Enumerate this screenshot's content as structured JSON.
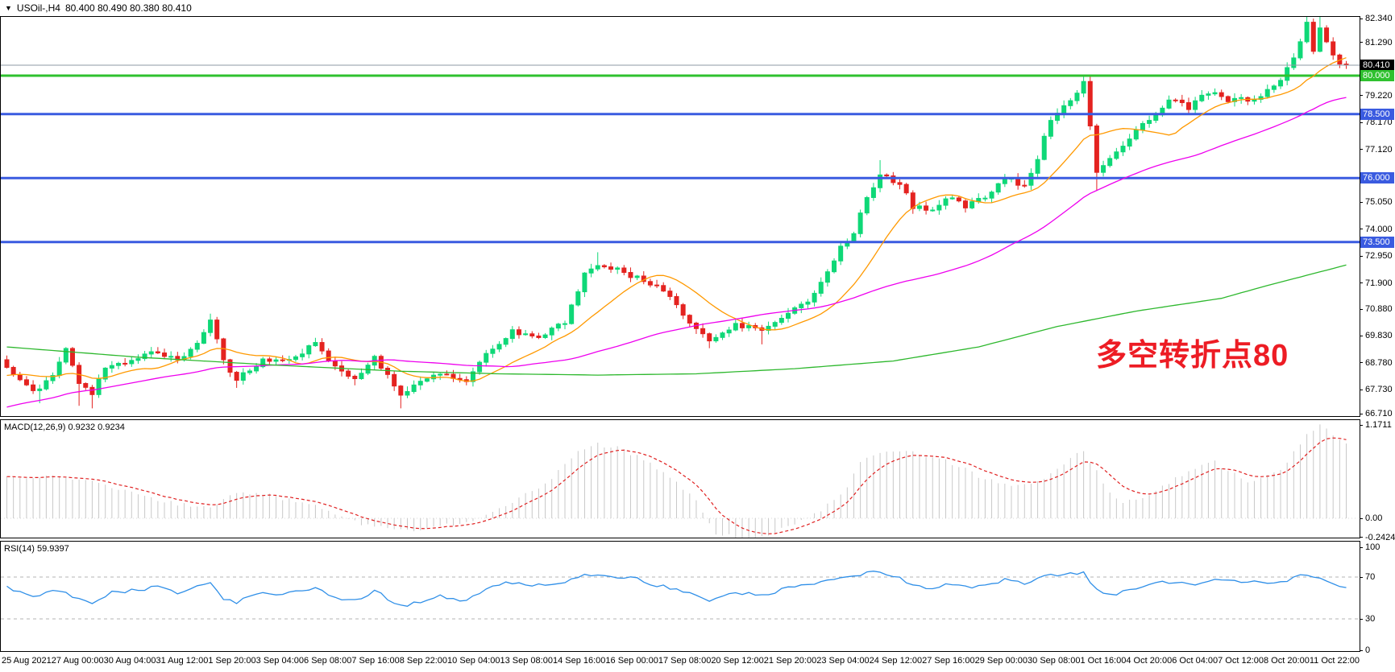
{
  "title": {
    "symbol_period": "USOil-,H4",
    "ohlc_text": "80.400 80.490 80.380 80.410",
    "dropdown_glyph": "▼"
  },
  "colors": {
    "bull": "#0fd877",
    "bear": "#e42320",
    "ma_fast": "#ff9900",
    "ma_mid": "#ee00ee",
    "ma_slow": "#2eb82e",
    "hline_green": "#2fc12f",
    "hline_blue": "#3a5be0",
    "bid_line": "#8d99a5",
    "bid_label_bg": "#000000",
    "macd_hist": "#c8c8c8",
    "macd_signal": "#e02020",
    "rsi_line": "#2f8fe8",
    "rsi_level": "#b5b5b5",
    "annotation": "#ed1c24"
  },
  "annotation": {
    "text": "多空转折点80"
  },
  "chart_data": {
    "type": "candlestick",
    "symbol": "USOil-",
    "timeframe": "H4",
    "ohlc_display": {
      "open": "80.400",
      "high": "80.490",
      "low": "80.380",
      "close": "80.410"
    },
    "bid_price": 80.41,
    "price_axis": {
      "ticks": [
        "82.340",
        "81.290",
        "79.220",
        "78.170",
        "77.120",
        "75.050",
        "74.000",
        "72.950",
        "71.900",
        "70.880",
        "69.830",
        "68.780",
        "67.730",
        "66.710"
      ],
      "line_labels": [
        {
          "text": "80.410",
          "price": 80.41,
          "bg": "#000000"
        },
        {
          "text": "80.000",
          "price": 80.0,
          "bg": "#2fc12f"
        },
        {
          "text": "78.500",
          "price": 78.5,
          "bg": "#3a5be0"
        },
        {
          "text": "76.000",
          "price": 76.0,
          "bg": "#3a5be0"
        },
        {
          "text": "73.500",
          "price": 73.5,
          "bg": "#3a5be0"
        }
      ]
    },
    "hlines": [
      {
        "price": 80.0,
        "color": "#2fc12f",
        "width": 3
      },
      {
        "price": 78.5,
        "color": "#3a5be0",
        "width": 3
      },
      {
        "price": 76.0,
        "color": "#3a5be0",
        "width": 3
      },
      {
        "price": 73.5,
        "color": "#3a5be0",
        "width": 3
      }
    ],
    "x_axis": {
      "labels": [
        "25 Aug 2021",
        "27 Aug 00:00",
        "30 Aug 04:00",
        "31 Aug 12:00",
        "1 Sep 20:00",
        "3 Sep 04:00",
        "6 Sep 08:00",
        "7 Sep 16:00",
        "8 Sep 22:00",
        "10 Sep 04:00",
        "13 Sep 08:00",
        "14 Sep 16:00",
        "16 Sep 00:00",
        "17 Sep 08:00",
        "20 Sep 12:00",
        "21 Sep 20:00",
        "23 Sep 04:00",
        "24 Sep 12:00",
        "27 Sep 16:00",
        "29 Sep 00:00",
        "30 Sep 08:00",
        "1 Oct 16:00",
        "4 Oct 20:00",
        "6 Oct 04:00",
        "7 Oct 12:00",
        "8 Oct 20:00",
        "11 Oct 22:00"
      ]
    },
    "candles": {
      "count": 205,
      "close_anchors": [
        [
          0,
          68.6
        ],
        [
          4,
          67.6
        ],
        [
          7,
          68.3
        ],
        [
          9,
          69.3
        ],
        [
          11,
          68.0
        ],
        [
          13,
          67.6
        ],
        [
          15,
          68.5
        ],
        [
          19,
          68.9
        ],
        [
          23,
          69.2
        ],
        [
          26,
          68.8
        ],
        [
          29,
          69.5
        ],
        [
          31,
          70.5
        ],
        [
          33,
          68.9
        ],
        [
          35,
          68.1
        ],
        [
          39,
          68.9
        ],
        [
          42,
          68.8
        ],
        [
          47,
          69.5
        ],
        [
          50,
          68.6
        ],
        [
          53,
          68.2
        ],
        [
          56,
          69.0
        ],
        [
          60,
          67.6
        ],
        [
          63,
          68.0
        ],
        [
          66,
          68.4
        ],
        [
          70,
          68.0
        ],
        [
          73,
          69.2
        ],
        [
          77,
          70.0
        ],
        [
          81,
          69.8
        ],
        [
          85,
          70.4
        ],
        [
          88,
          72.2
        ],
        [
          90,
          72.6
        ],
        [
          93,
          72.4
        ],
        [
          98,
          71.9
        ],
        [
          101,
          71.3
        ],
        [
          104,
          70.4
        ],
        [
          107,
          69.7
        ],
        [
          111,
          70.3
        ],
        [
          115,
          70.0
        ],
        [
          118,
          70.6
        ],
        [
          122,
          71.2
        ],
        [
          125,
          72.3
        ],
        [
          127,
          73.3
        ],
        [
          129,
          73.8
        ],
        [
          131,
          75.3
        ],
        [
          133,
          76.1
        ],
        [
          136,
          75.8
        ],
        [
          138,
          74.9
        ],
        [
          141,
          74.8
        ],
        [
          144,
          75.3
        ],
        [
          146,
          74.9
        ],
        [
          149,
          75.3
        ],
        [
          152,
          76.0
        ],
        [
          155,
          75.7
        ],
        [
          157,
          76.8
        ],
        [
          159,
          78.3
        ],
        [
          161,
          78.9
        ],
        [
          163,
          79.3
        ],
        [
          164,
          79.8
        ],
        [
          165,
          78.0
        ],
        [
          166,
          76.3
        ],
        [
          168,
          76.8
        ],
        [
          170,
          77.3
        ],
        [
          172,
          77.8
        ],
        [
          174,
          78.3
        ],
        [
          176,
          78.8
        ],
        [
          178,
          79.1
        ],
        [
          180,
          78.7
        ],
        [
          182,
          79.2
        ],
        [
          184,
          79.4
        ],
        [
          186,
          79.0
        ],
        [
          188,
          79.2
        ],
        [
          190,
          79.0
        ],
        [
          192,
          79.4
        ],
        [
          194,
          79.9
        ],
        [
          196,
          80.6
        ],
        [
          197,
          81.3
        ],
        [
          198,
          82.0
        ],
        [
          199,
          80.9
        ],
        [
          200,
          81.9
        ],
        [
          201,
          81.3
        ],
        [
          202,
          80.8
        ],
        [
          203,
          80.5
        ],
        [
          204,
          80.41
        ]
      ],
      "low_wicks": {
        "5": 67.2,
        "11": 67.1,
        "13": 67.0,
        "35": 67.8,
        "53": 67.9,
        "60": 67.0,
        "70": 67.9,
        "107": 69.35,
        "115": 69.5,
        "166": 75.5
      },
      "high_wicks": {
        "31": 70.7,
        "90": 73.1,
        "133": 76.7,
        "164": 79.97,
        "198": 82.34,
        "200": 82.3
      }
    },
    "moving_averages": {
      "fast": {
        "color": "#ff9900",
        "period": 13,
        "pre_from": 66.8,
        "pre_to": 68.6,
        "pre_len": 30
      },
      "mid": {
        "color": "#ee00ee",
        "period": 45,
        "pre_from": 63.5,
        "pre_to": 68.6,
        "pre_len": 70
      },
      "slow_anchors": [
        [
          0,
          69.4
        ],
        [
          20,
          69.0
        ],
        [
          40,
          68.7
        ],
        [
          60,
          68.45
        ],
        [
          75,
          68.35
        ],
        [
          90,
          68.3
        ],
        [
          105,
          68.35
        ],
        [
          120,
          68.55
        ],
        [
          135,
          68.85
        ],
        [
          148,
          69.4
        ],
        [
          160,
          70.2
        ],
        [
          172,
          70.8
        ],
        [
          185,
          71.3
        ],
        [
          192,
          71.8
        ],
        [
          204,
          72.6
        ]
      ]
    },
    "indicators": {
      "macd": {
        "label": "MACD(12,26,9) 0.9232 0.9234",
        "axis": [
          {
            "text": "1.1711",
            "v": 1.1711
          },
          {
            "text": "0.00",
            "v": 0
          },
          {
            "text": "-0.2424",
            "v": -0.2424
          }
        ],
        "hist_anchors": [
          [
            0,
            0.5
          ],
          [
            8,
            0.52
          ],
          [
            14,
            0.45
          ],
          [
            20,
            0.3
          ],
          [
            26,
            0.18
          ],
          [
            31,
            0.12
          ],
          [
            34,
            0.28
          ],
          [
            38,
            0.33
          ],
          [
            42,
            0.25
          ],
          [
            47,
            0.18
          ],
          [
            50,
            0.05
          ],
          [
            54,
            -0.08
          ],
          [
            58,
            -0.12
          ],
          [
            62,
            -0.15
          ],
          [
            66,
            -0.1
          ],
          [
            70,
            -0.05
          ],
          [
            74,
            0.1
          ],
          [
            78,
            0.25
          ],
          [
            82,
            0.42
          ],
          [
            84,
            0.6
          ],
          [
            87,
            0.85
          ],
          [
            90,
            0.93
          ],
          [
            93,
            0.88
          ],
          [
            96,
            0.78
          ],
          [
            99,
            0.62
          ],
          [
            102,
            0.45
          ],
          [
            105,
            0.22
          ],
          [
            108,
            -0.18
          ],
          [
            112,
            -0.24
          ],
          [
            116,
            -0.2
          ],
          [
            120,
            -0.08
          ],
          [
            124,
            0.1
          ],
          [
            128,
            0.38
          ],
          [
            130,
            0.7
          ],
          [
            134,
            0.85
          ],
          [
            138,
            0.82
          ],
          [
            142,
            0.75
          ],
          [
            145,
            0.66
          ],
          [
            148,
            0.52
          ],
          [
            151,
            0.44
          ],
          [
            154,
            0.4
          ],
          [
            157,
            0.46
          ],
          [
            160,
            0.62
          ],
          [
            163,
            0.82
          ],
          [
            164,
            0.85
          ],
          [
            166,
            0.58
          ],
          [
            168,
            0.34
          ],
          [
            170,
            0.2
          ],
          [
            173,
            0.26
          ],
          [
            176,
            0.4
          ],
          [
            179,
            0.55
          ],
          [
            182,
            0.66
          ],
          [
            184,
            0.7
          ],
          [
            186,
            0.6
          ],
          [
            188,
            0.5
          ],
          [
            190,
            0.45
          ],
          [
            192,
            0.52
          ],
          [
            194,
            0.62
          ],
          [
            196,
            0.82
          ],
          [
            198,
            1.06
          ],
          [
            200,
            1.17
          ],
          [
            202,
            1.05
          ],
          [
            204,
            0.92
          ]
        ]
      },
      "rsi": {
        "label": "RSI(14) 59.9397",
        "axis": [
          {
            "text": "100",
            "v": 100
          },
          {
            "text": "70",
            "v": 70
          },
          {
            "text": "30",
            "v": 30
          },
          {
            "text": "0",
            "v": 0
          }
        ],
        "levels": [
          70,
          30
        ],
        "anchors": [
          [
            0,
            60
          ],
          [
            4,
            52
          ],
          [
            8,
            58
          ],
          [
            11,
            48
          ],
          [
            13,
            45
          ],
          [
            16,
            55
          ],
          [
            20,
            58
          ],
          [
            23,
            60
          ],
          [
            26,
            55
          ],
          [
            29,
            62
          ],
          [
            31,
            66
          ],
          [
            33,
            50
          ],
          [
            35,
            46
          ],
          [
            39,
            55
          ],
          [
            42,
            54
          ],
          [
            47,
            60
          ],
          [
            50,
            50
          ],
          [
            53,
            47
          ],
          [
            56,
            57
          ],
          [
            60,
            42
          ],
          [
            63,
            47
          ],
          [
            66,
            52
          ],
          [
            70,
            47
          ],
          [
            73,
            60
          ],
          [
            77,
            65
          ],
          [
            81,
            62
          ],
          [
            85,
            66
          ],
          [
            88,
            72
          ],
          [
            90,
            73
          ],
          [
            93,
            70
          ],
          [
            96,
            68
          ],
          [
            99,
            62
          ],
          [
            102,
            58
          ],
          [
            105,
            52
          ],
          [
            107,
            48
          ],
          [
            111,
            56
          ],
          [
            115,
            52
          ],
          [
            118,
            58
          ],
          [
            122,
            62
          ],
          [
            125,
            67
          ],
          [
            127,
            70
          ],
          [
            131,
            74
          ],
          [
            133,
            75
          ],
          [
            136,
            70
          ],
          [
            138,
            62
          ],
          [
            141,
            60
          ],
          [
            144,
            64
          ],
          [
            146,
            60
          ],
          [
            149,
            63
          ],
          [
            152,
            67
          ],
          [
            155,
            64
          ],
          [
            157,
            68
          ],
          [
            159,
            72
          ],
          [
            162,
            73
          ],
          [
            164,
            74
          ],
          [
            166,
            58
          ],
          [
            168,
            52
          ],
          [
            170,
            56
          ],
          [
            172,
            60
          ],
          [
            175,
            64
          ],
          [
            178,
            66
          ],
          [
            180,
            63
          ],
          [
            183,
            66
          ],
          [
            186,
            67
          ],
          [
            188,
            64
          ],
          [
            190,
            65
          ],
          [
            192,
            64
          ],
          [
            194,
            66
          ],
          [
            196,
            69
          ],
          [
            198,
            73
          ],
          [
            200,
            70
          ],
          [
            202,
            62
          ],
          [
            203,
            60
          ],
          [
            204,
            59.94
          ]
        ]
      }
    }
  }
}
